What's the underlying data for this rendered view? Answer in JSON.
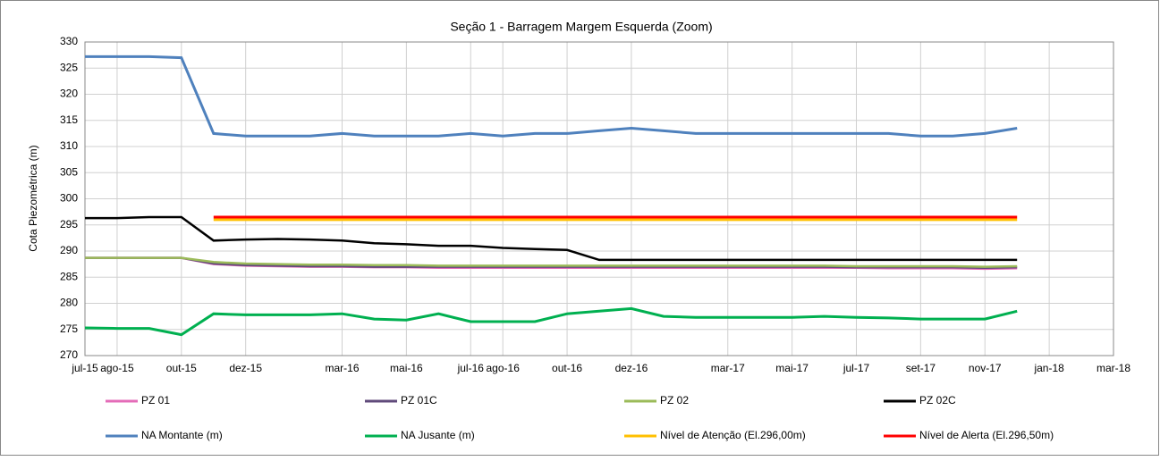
{
  "chart_data": {
    "type": "line",
    "title": "Seção 1 - Barragem Margem Esquerda (Zoom)",
    "y_label": "Cota Piezométrica (m)",
    "x": [
      "2015-07",
      "2015-08",
      "2015-09",
      "2015-10",
      "2015-11",
      "2015-12",
      "2016-01",
      "2016-02",
      "2016-03",
      "2016-04",
      "2016-05",
      "2016-06",
      "2016-07",
      "2016-08",
      "2016-09",
      "2016-10",
      "2016-11",
      "2016-12",
      "2017-01",
      "2017-02",
      "2017-03",
      "2017-04",
      "2017-05",
      "2017-06",
      "2017-07",
      "2017-08",
      "2017-09",
      "2017-10",
      "2017-11",
      "2017-12"
    ],
    "series": [
      {
        "name": "PZ 01",
        "color": "#e46cb8",
        "values": [
          288.7,
          288.7,
          288.7,
          288.7,
          287.5,
          287.2,
          287.1,
          287.0,
          287.0,
          286.9,
          286.9,
          286.8,
          286.8,
          286.8,
          286.8,
          286.8,
          286.8,
          286.8,
          286.8,
          286.8,
          286.8,
          286.8,
          286.8,
          286.8,
          286.8,
          286.7,
          286.7,
          286.7,
          286.6,
          286.7
        ]
      },
      {
        "name": "PZ 01C",
        "color": "#604a7b",
        "values": [
          288.7,
          288.7,
          288.7,
          288.7,
          287.6,
          287.3,
          287.2,
          287.1,
          287.1,
          287.0,
          287.0,
          287.0,
          287.0,
          287.0,
          287.0,
          287.0,
          287.0,
          287.0,
          287.0,
          287.0,
          287.0,
          287.0,
          287.0,
          287.0,
          286.9,
          286.9,
          286.9,
          286.9,
          286.8,
          286.9
        ]
      },
      {
        "name": "PZ 02",
        "color": "#9bbb59",
        "values": [
          288.7,
          288.7,
          288.7,
          288.7,
          287.9,
          287.6,
          287.5,
          287.4,
          287.4,
          287.3,
          287.3,
          287.2,
          287.2,
          287.2,
          287.2,
          287.2,
          287.2,
          287.2,
          287.2,
          287.2,
          287.2,
          287.2,
          287.2,
          287.2,
          287.1,
          287.1,
          287.1,
          287.1,
          287.0,
          287.1
        ]
      },
      {
        "name": "PZ 02C",
        "color": "#000000",
        "values": [
          296.3,
          296.3,
          296.5,
          296.5,
          292.0,
          292.2,
          292.3,
          292.2,
          292.0,
          291.5,
          291.3,
          291.0,
          291.0,
          290.6,
          290.4,
          290.2,
          288.3,
          288.3,
          288.3,
          288.3,
          288.3,
          288.3,
          288.3,
          288.3,
          288.3,
          288.3,
          288.3,
          288.3,
          288.3,
          288.3
        ]
      },
      {
        "name": "NA Montante (m)",
        "color": "#4f81bd",
        "values": [
          327.2,
          327.2,
          327.2,
          327.0,
          312.5,
          312.0,
          312.0,
          312.0,
          312.5,
          312.0,
          312.0,
          312.0,
          312.5,
          312.0,
          312.5,
          312.5,
          313.0,
          313.5,
          313.0,
          312.5,
          312.5,
          312.5,
          312.5,
          312.5,
          312.5,
          312.5,
          312.0,
          312.0,
          312.5,
          313.5
        ]
      },
      {
        "name": "NA Jusante (m)",
        "color": "#00b050",
        "values": [
          275.3,
          275.2,
          275.2,
          274.0,
          278.0,
          277.8,
          277.8,
          277.8,
          278.0,
          277.0,
          276.8,
          278.0,
          276.5,
          276.5,
          276.5,
          278.0,
          278.5,
          279.0,
          277.5,
          277.3,
          277.3,
          277.3,
          277.3,
          277.5,
          277.3,
          277.2,
          277.0,
          277.0,
          277.0,
          278.5
        ]
      },
      {
        "name": "Nível de Atenção (El.296,00m)",
        "color": "#ffc000",
        "values": [
          null,
          null,
          null,
          null,
          296.0,
          296.0,
          296.0,
          296.0,
          296.0,
          296.0,
          296.0,
          296.0,
          296.0,
          296.0,
          296.0,
          296.0,
          296.0,
          296.0,
          296.0,
          296.0,
          296.0,
          296.0,
          296.0,
          296.0,
          296.0,
          296.0,
          296.0,
          296.0,
          296.0,
          296.0
        ]
      },
      {
        "name": "Nível de Alerta (El.296,50m)",
        "color": "#ff0000",
        "values": [
          null,
          null,
          null,
          null,
          296.5,
          296.5,
          296.5,
          296.5,
          296.5,
          296.5,
          296.5,
          296.5,
          296.5,
          296.5,
          296.5,
          296.5,
          296.5,
          296.5,
          296.5,
          296.5,
          296.5,
          296.5,
          296.5,
          296.5,
          296.5,
          296.5,
          296.5,
          296.5,
          296.5,
          296.5
        ]
      }
    ],
    "xlim": [
      "2015-07",
      "2018-03"
    ],
    "xticks": [
      {
        "value": "2015-07",
        "label": "jul-15"
      },
      {
        "value": "2015-08",
        "label": "ago-15"
      },
      {
        "value": "2015-10",
        "label": "out-15"
      },
      {
        "value": "2015-12",
        "label": "dez-15"
      },
      {
        "value": "2016-03",
        "label": "mar-16"
      },
      {
        "value": "2016-05",
        "label": "mai-16"
      },
      {
        "value": "2016-07",
        "label": "jul-16"
      },
      {
        "value": "2016-08",
        "label": "ago-16"
      },
      {
        "value": "2016-10",
        "label": "out-16"
      },
      {
        "value": "2016-12",
        "label": "dez-16"
      },
      {
        "value": "2017-03",
        "label": "mar-17"
      },
      {
        "value": "2017-05",
        "label": "mai-17"
      },
      {
        "value": "2017-07",
        "label": "jul-17"
      },
      {
        "value": "2017-09",
        "label": "set-17"
      },
      {
        "value": "2017-11",
        "label": "nov-17"
      },
      {
        "value": "2018-01",
        "label": "jan-18"
      },
      {
        "value": "2018-03",
        "label": "mar-18"
      }
    ],
    "ylim": [
      270,
      330
    ],
    "yticks": [
      270,
      275,
      280,
      285,
      290,
      295,
      300,
      305,
      310,
      315,
      320,
      325,
      330
    ],
    "grid": true,
    "legend": "bottom"
  }
}
